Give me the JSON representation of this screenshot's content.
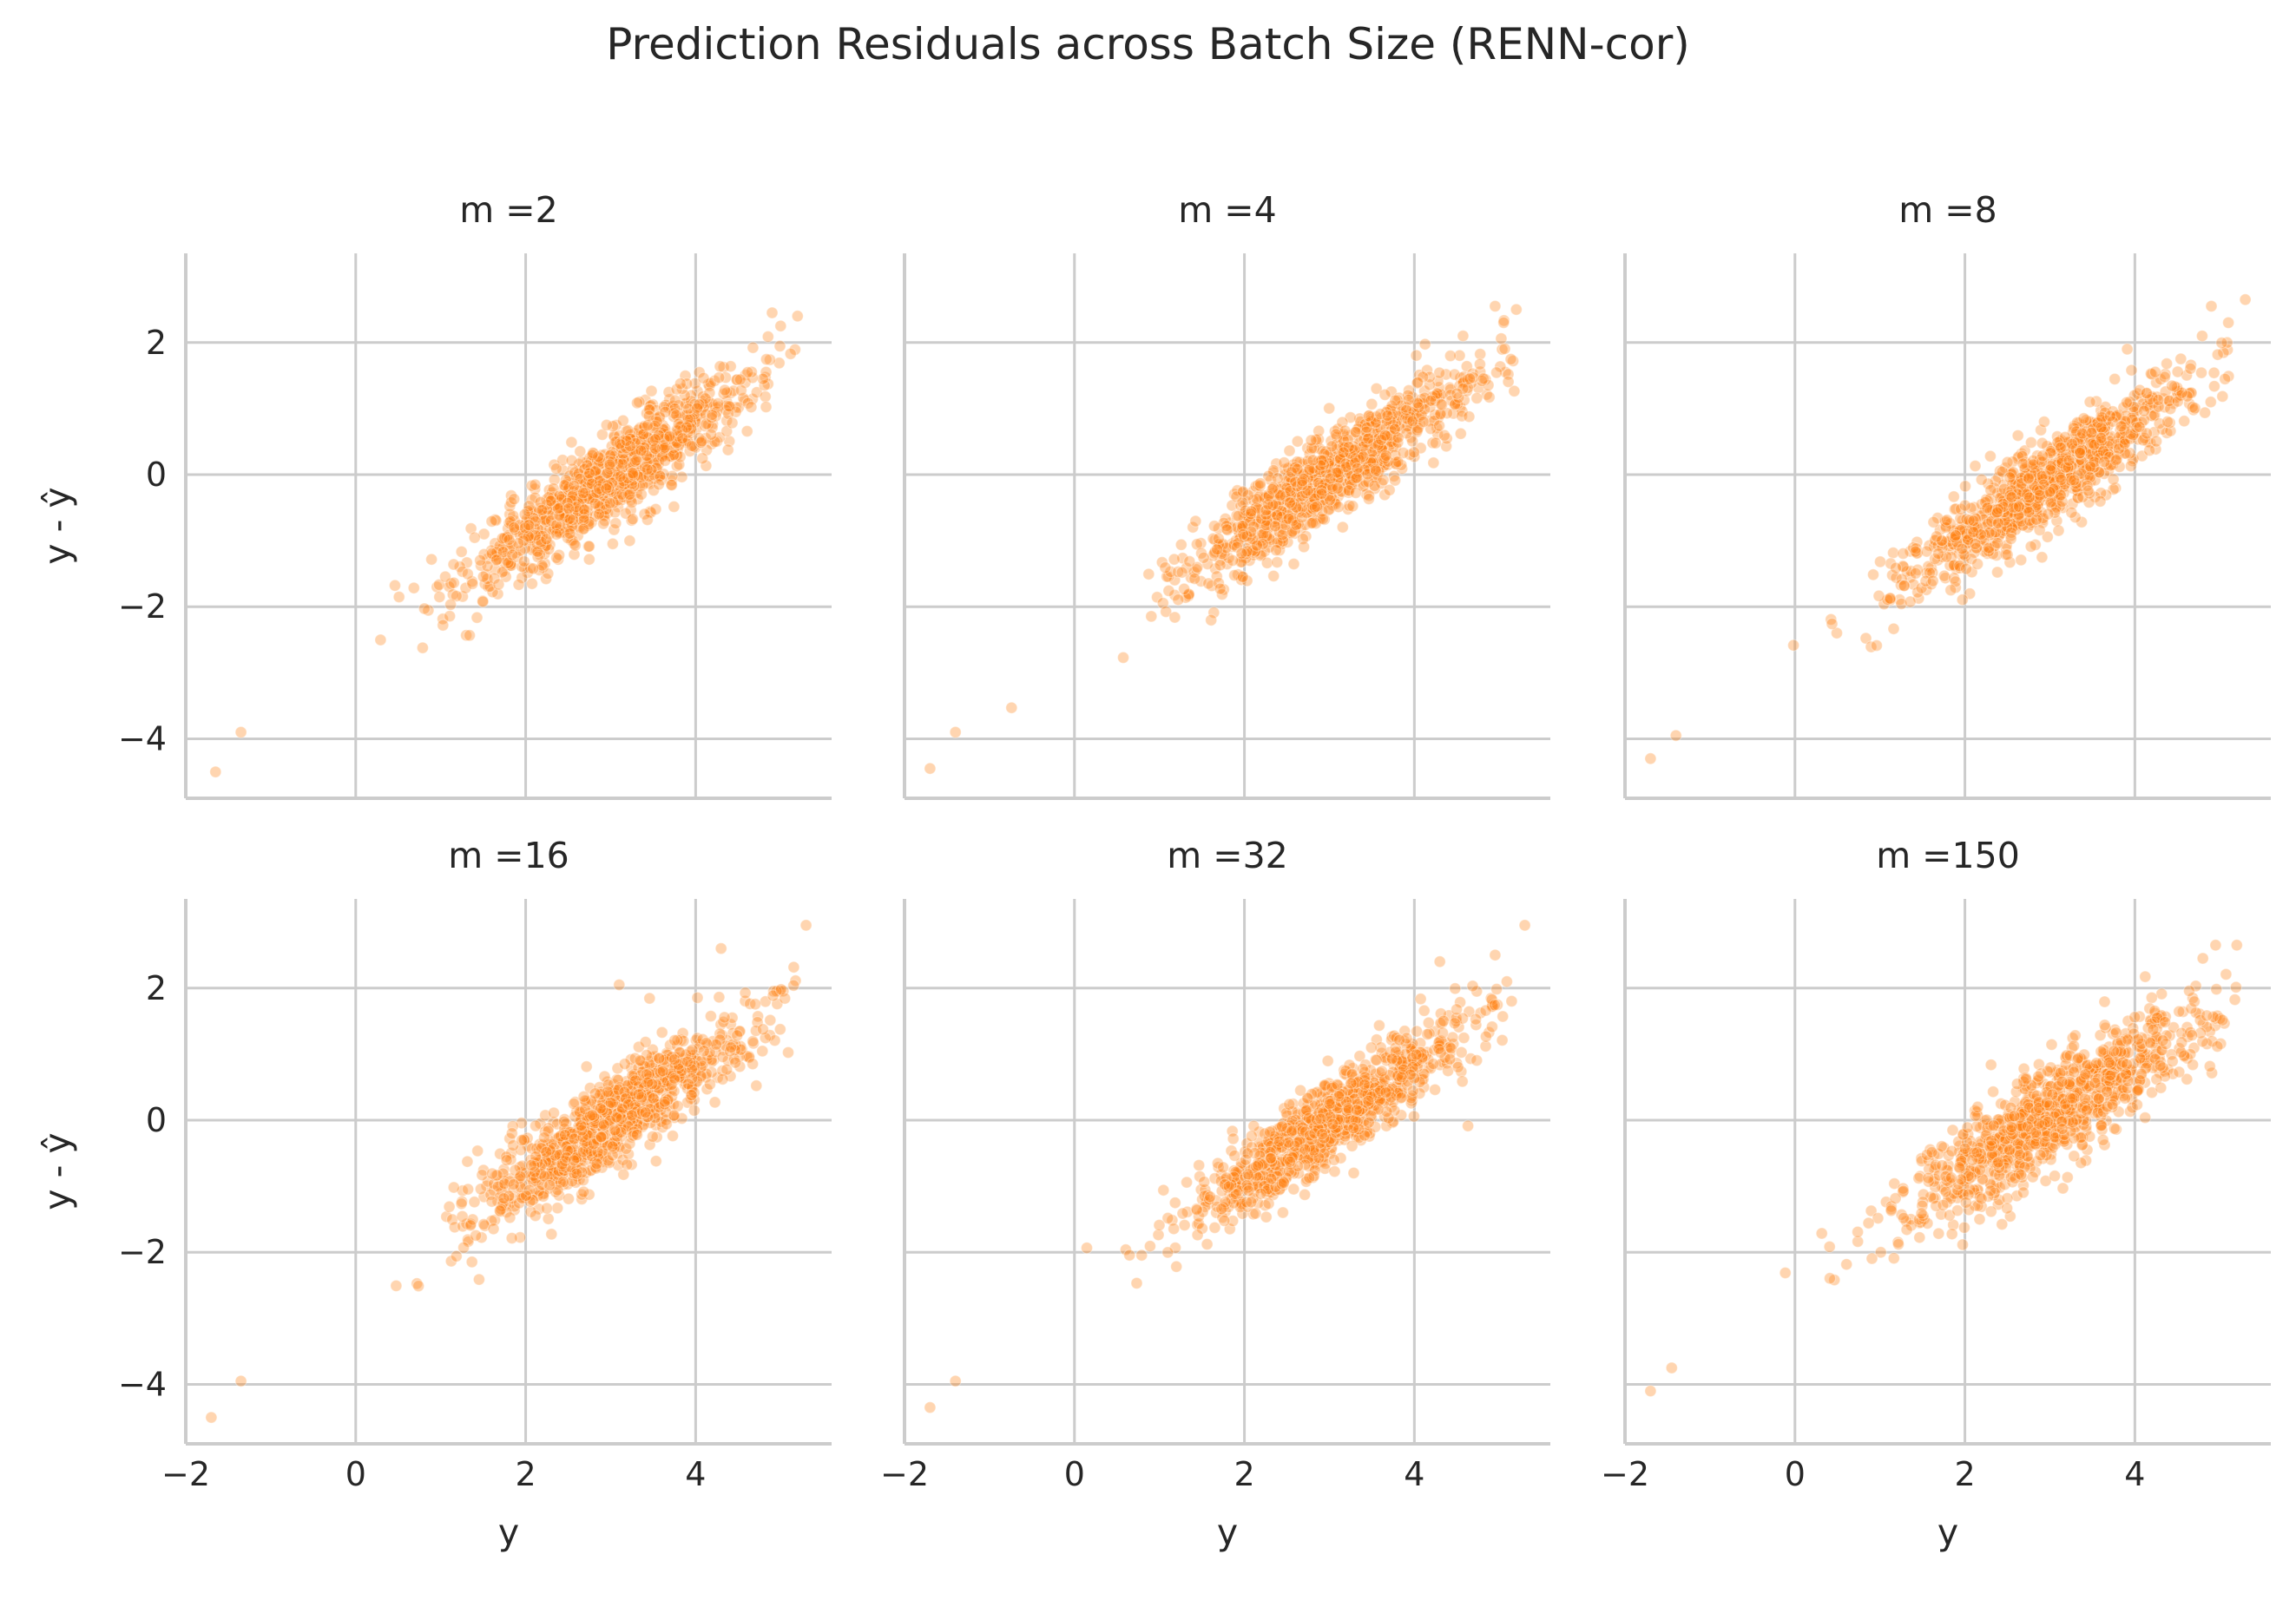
{
  "title": "Prediction Residuals across Batch Size (RENN-cor)",
  "colors": {
    "points": "#ff7f0e",
    "grid": "#cccccc",
    "spine": "#cccccc",
    "text": "#262626"
  },
  "chart_data": {
    "type": "scatter",
    "layout": "facet grid 2 rows x 3 columns, shared axes",
    "xlabel": "y",
    "ylabel": "y - ŷ",
    "xlim": [
      -2,
      5.6
    ],
    "ylim": [
      -4.9,
      3.35
    ],
    "xticks": [
      -2,
      0,
      2,
      4
    ],
    "yticks": [
      -4,
      -2,
      0,
      2
    ],
    "xtick_labels": [
      "−2",
      "0",
      "2",
      "4"
    ],
    "ytick_labels": [
      "−4",
      "−2",
      "0",
      "2"
    ],
    "grid": true,
    "approx_points_per_panel": 1000,
    "panels": [
      {
        "title": "m =2",
        "slope": 0.85,
        "intercept": -2.6,
        "sigma": 0.34,
        "extremes": [
          [
            -1.65,
            -4.5
          ],
          [
            -1.35,
            -3.9
          ],
          [
            5.2,
            2.4
          ],
          [
            4.9,
            2.45
          ],
          [
            5.0,
            2.25
          ]
        ]
      },
      {
        "title": "m =4",
        "slope": 0.85,
        "intercept": -2.6,
        "sigma": 0.33,
        "extremes": [
          [
            -1.7,
            -4.45
          ],
          [
            -1.4,
            -3.9
          ],
          [
            5.2,
            2.5
          ],
          [
            4.95,
            2.55
          ],
          [
            5.05,
            2.3
          ]
        ]
      },
      {
        "title": "m =8",
        "slope": 0.85,
        "intercept": -2.65,
        "sigma": 0.33,
        "extremes": [
          [
            -1.7,
            -4.3
          ],
          [
            -1.4,
            -3.95
          ],
          [
            5.3,
            2.65
          ],
          [
            4.9,
            2.55
          ],
          [
            5.1,
            2.3
          ]
        ]
      },
      {
        "title": "m =16",
        "slope": 0.86,
        "intercept": -2.6,
        "sigma": 0.34,
        "extremes": [
          [
            -1.7,
            -4.5
          ],
          [
            -1.35,
            -3.95
          ],
          [
            5.3,
            2.95
          ],
          [
            3.1,
            2.05
          ],
          [
            4.3,
            2.6
          ]
        ]
      },
      {
        "title": "m =32",
        "slope": 0.86,
        "intercept": -2.6,
        "sigma": 0.33,
        "extremes": [
          [
            -1.7,
            -4.35
          ],
          [
            -1.4,
            -3.95
          ],
          [
            5.3,
            2.95
          ],
          [
            4.3,
            2.4
          ],
          [
            4.95,
            2.5
          ]
        ]
      },
      {
        "title": "m =150",
        "slope": 0.8,
        "intercept": -2.35,
        "sigma": 0.4,
        "extremes": [
          [
            -1.7,
            -4.1
          ],
          [
            -1.45,
            -3.75
          ],
          [
            5.2,
            2.65
          ],
          [
            4.95,
            2.65
          ],
          [
            4.8,
            2.45
          ]
        ]
      }
    ]
  }
}
